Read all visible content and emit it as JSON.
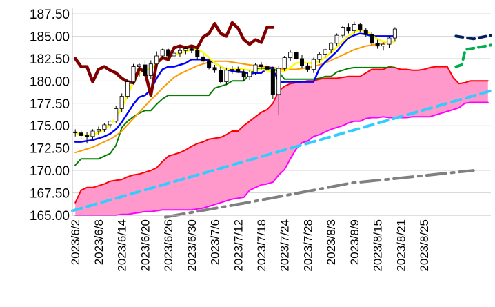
{
  "chart_data": {
    "type": "line",
    "title": "",
    "xlabel": "",
    "ylabel": "",
    "ylim": [
      165.0,
      187.5
    ],
    "y_ticks": [
      "187.50",
      "185.00",
      "182.50",
      "180.00",
      "177.50",
      "175.00",
      "172.50",
      "170.00",
      "167.50",
      "165.00"
    ],
    "x_tick_labels": [
      "2023/6/2",
      "2023/6/8",
      "2023/6/14",
      "2023/6/20",
      "2023/6/26",
      "2023/6/30",
      "2023/7/6",
      "2023/7/12",
      "2023/7/18",
      "2023/7/24",
      "2023/7/28",
      "2023/8/3",
      "2023/8/9",
      "2023/8/15",
      "2023/8/21",
      "2023/8/25"
    ],
    "x_tick_index": [
      0,
      4,
      8,
      12,
      16,
      20,
      24,
      28,
      32,
      36,
      40,
      44,
      48,
      52,
      56,
      60
    ],
    "n_periods": 72,
    "candles": [
      [
        174.3,
        174.6,
        173.8,
        174.2
      ],
      [
        174.2,
        174.5,
        173.5,
        173.9
      ],
      [
        173.9,
        174.3,
        173.0,
        173.8
      ],
      [
        173.8,
        174.6,
        173.5,
        174.4
      ],
      [
        174.4,
        174.9,
        174.0,
        174.6
      ],
      [
        174.6,
        175.3,
        174.3,
        175.1
      ],
      [
        175.1,
        175.6,
        174.7,
        175.5
      ],
      [
        175.5,
        177.2,
        175.3,
        176.9
      ],
      [
        176.9,
        178.6,
        176.5,
        178.3
      ],
      [
        178.3,
        180.2,
        178.0,
        179.9
      ],
      [
        179.9,
        181.9,
        179.6,
        181.6
      ],
      [
        181.6,
        182.0,
        180.5,
        181.8
      ],
      [
        181.8,
        182.3,
        180.4,
        180.6
      ],
      [
        180.6,
        182.3,
        180.2,
        181.9
      ],
      [
        181.9,
        183.3,
        181.4,
        182.8
      ],
      [
        182.8,
        183.6,
        182.4,
        183.5
      ],
      [
        183.5,
        183.6,
        182.5,
        182.8
      ],
      [
        182.8,
        183.5,
        182.3,
        183.1
      ],
      [
        183.1,
        183.7,
        182.7,
        183.4
      ],
      [
        183.4,
        183.8,
        183.0,
        183.6
      ],
      [
        183.6,
        183.8,
        183.1,
        183.4
      ],
      [
        183.4,
        183.7,
        182.4,
        182.7
      ],
      [
        182.7,
        183.0,
        181.9,
        182.2
      ],
      [
        182.2,
        182.5,
        181.3,
        181.5
      ],
      [
        181.5,
        181.8,
        180.9,
        181.2
      ],
      [
        181.2,
        181.6,
        179.7,
        179.9
      ],
      [
        179.9,
        181.5,
        179.6,
        181.2
      ],
      [
        181.2,
        181.7,
        180.8,
        181.3
      ],
      [
        181.3,
        181.6,
        180.9,
        181.0
      ],
      [
        181.0,
        181.3,
        180.0,
        180.5
      ],
      [
        180.5,
        181.2,
        180.1,
        181.0
      ],
      [
        181.0,
        182.0,
        180.7,
        181.8
      ],
      [
        181.8,
        182.1,
        181.3,
        181.6
      ],
      [
        181.6,
        182.0,
        181.0,
        181.3
      ],
      [
        181.3,
        181.6,
        178.0,
        178.5
      ],
      [
        178.5,
        181.7,
        176.2,
        181.4
      ],
      [
        181.4,
        182.8,
        181.1,
        182.6
      ],
      [
        182.6,
        183.4,
        182.2,
        183.2
      ],
      [
        183.2,
        183.4,
        182.3,
        182.5
      ],
      [
        182.5,
        182.9,
        181.4,
        181.7
      ],
      [
        181.7,
        182.0,
        181.0,
        181.3
      ],
      [
        181.3,
        182.6,
        180.9,
        182.4
      ],
      [
        182.4,
        183.2,
        182.0,
        183.0
      ],
      [
        183.0,
        183.6,
        182.6,
        183.5
      ],
      [
        183.5,
        184.3,
        183.1,
        184.2
      ],
      [
        184.2,
        185.3,
        183.9,
        185.1
      ],
      [
        185.1,
        186.2,
        184.8,
        186.0
      ],
      [
        186.0,
        186.4,
        185.3,
        185.6
      ],
      [
        185.6,
        186.6,
        185.3,
        186.3
      ],
      [
        186.3,
        186.5,
        185.5,
        185.7
      ],
      [
        185.7,
        185.9,
        184.9,
        185.2
      ],
      [
        185.2,
        185.5,
        184.0,
        184.2
      ],
      [
        184.2,
        184.6,
        183.6,
        183.9
      ],
      [
        183.9,
        184.3,
        183.4,
        184.1
      ],
      [
        184.1,
        185.0,
        183.7,
        184.8
      ],
      [
        184.8,
        186.0,
        184.4,
        185.8
      ]
    ],
    "series": [
      {
        "color": "#ffff00",
        "values": [
          174.2,
          174.0,
          173.9,
          174.0,
          174.2,
          174.6,
          175.1,
          175.9,
          177.0,
          178.4,
          179.9,
          180.9,
          181.2,
          181.4,
          181.9,
          182.5,
          182.7,
          182.9,
          183.1,
          183.3,
          183.5,
          183.5,
          183.2,
          182.6,
          182.0,
          181.6,
          181.3,
          181.3,
          181.4,
          181.3,
          181.2,
          181.2,
          181.3,
          181.2,
          181.0,
          181.0,
          181.1,
          181.5,
          182.0,
          182.1,
          182.0,
          182.0,
          182.2,
          182.6,
          183.2,
          183.8,
          184.4,
          185.0,
          185.4,
          185.7,
          185.6,
          185.1,
          184.7,
          184.4,
          184.3,
          184.4
        ]
      },
      {
        "color": "#0000ff",
        "values": [
          173.2,
          173.2,
          173.3,
          173.4,
          173.6,
          173.8,
          174.1,
          174.6,
          175.4,
          176.4,
          177.4,
          178.2,
          178.4,
          179.0,
          180.3,
          181.3,
          181.6,
          181.6,
          181.8,
          182.0,
          182.4,
          182.4,
          182.4,
          182.3,
          182.0,
          181.6,
          181.3,
          181.1,
          181.0,
          181.0,
          180.8,
          180.9,
          180.9,
          181.4,
          181.5,
          179.8,
          179.9,
          179.9,
          179.9,
          179.9,
          179.9,
          179.9,
          181.4,
          182.1,
          182.7,
          183.3,
          184.1,
          184.8,
          185.1,
          185.3,
          185.2,
          185.0,
          185.0,
          185.0,
          185.0,
          185.0
        ]
      },
      {
        "color": "#ff9900",
        "values": [
          172.0,
          172.2,
          172.4,
          172.6,
          172.9,
          173.2,
          173.5,
          173.9,
          174.4,
          175.1,
          175.8,
          176.5,
          177.2,
          177.9,
          178.5,
          179.2,
          179.8,
          180.4,
          180.8,
          181.1,
          181.4,
          181.7,
          181.9,
          182.1,
          182.2,
          182.2,
          182.2,
          182.1,
          182.0,
          181.9,
          181.8,
          181.7,
          181.6,
          181.6,
          181.5,
          181.4,
          181.3,
          181.3,
          181.3,
          181.4,
          181.5,
          181.6,
          181.8,
          182.0,
          182.3,
          182.6,
          182.9,
          183.2,
          183.5,
          183.7,
          183.9,
          184.0,
          184.1,
          184.2,
          184.3,
          184.4
        ]
      },
      {
        "color": "#008000",
        "values": [
          170.6,
          171.3,
          171.3,
          171.3,
          171.3,
          171.6,
          171.9,
          172.8,
          174.8,
          175.5,
          176.0,
          176.4,
          176.7,
          176.7,
          177.4,
          178.0,
          178.4,
          178.4,
          178.4,
          178.4,
          178.4,
          178.4,
          178.4,
          178.4,
          179.2,
          179.4,
          179.6,
          180.0,
          180.0,
          180.0,
          180.8,
          181.4,
          181.4,
          181.4,
          181.4,
          181.0,
          180.2,
          180.2,
          180.2,
          180.2,
          180.2,
          180.2,
          180.3,
          180.5,
          180.5,
          181.0,
          181.2,
          181.4,
          181.5,
          181.5,
          181.5,
          181.5,
          181.5,
          181.5,
          181.5,
          181.5
        ]
      },
      {
        "color": "#800000",
        "values": [
          182.5,
          181.6,
          181.6,
          179.9,
          181.3,
          181.6,
          181.2,
          180.9,
          180.3,
          179.9,
          179.8,
          181.4,
          181.0,
          178.4,
          182.0,
          182.6,
          182.4,
          183.7,
          183.9,
          183.7,
          183.9,
          183.7,
          184.9,
          185.3,
          186.4,
          185.3,
          185.0,
          186.5,
          185.9,
          184.6,
          184.1,
          184.6,
          184.3,
          186.0,
          186.0
        ]
      },
      {
        "color": "#ff0000",
        "values": [
          166.4,
          167.8,
          168.1,
          168.1,
          168.3,
          168.5,
          168.8,
          168.9,
          169.0,
          169.3,
          169.5,
          169.6,
          169.8,
          170.0,
          170.3,
          171.0,
          171.6,
          171.8,
          172.0,
          172.3,
          172.7,
          173.0,
          173.2,
          173.5,
          173.6,
          173.7,
          174.0,
          174.4,
          174.4,
          175.0,
          175.5,
          176.0,
          176.5,
          176.8,
          177.5,
          178.9,
          179.4,
          179.7,
          179.8,
          179.9,
          180.0,
          180.0,
          180.2,
          180.3,
          180.3,
          180.3,
          180.4,
          180.5,
          180.5,
          180.5,
          180.9,
          181.3,
          181.3,
          181.3,
          181.6,
          181.5,
          181.3,
          181.3,
          181.2,
          181.2,
          181.3,
          181.5,
          181.6,
          181.6,
          181.6,
          180.4,
          179.7,
          179.8,
          180.0,
          180.0,
          180.0,
          180.0
        ]
      },
      {
        "color": "#ff00ff",
        "values": [
          165.0,
          165.0,
          165.0,
          165.0,
          165.0,
          165.0,
          165.0,
          165.0,
          165.1,
          165.1,
          165.2,
          165.3,
          165.4,
          165.4,
          165.5,
          165.6,
          165.6,
          165.6,
          165.6,
          165.6,
          165.6,
          165.7,
          165.8,
          166.0,
          166.2,
          166.4,
          166.6,
          166.8,
          166.9,
          167.0,
          167.8,
          168.1,
          168.4,
          168.5,
          168.7,
          169.5,
          170.1,
          171.3,
          172.4,
          173.1,
          173.3,
          173.8,
          174.0,
          174.3,
          174.6,
          174.8,
          175.0,
          175.3,
          175.5,
          175.5,
          175.8,
          175.9,
          175.9,
          176.0,
          175.9,
          175.9,
          175.9,
          175.9,
          176.0,
          176.0,
          176.0,
          176.0,
          176.2,
          176.4,
          176.6,
          176.8,
          177.0,
          177.5,
          177.6,
          177.6,
          177.6,
          177.6
        ]
      },
      {
        "color": "#33ccff",
        "values": [
          165.5,
          171.4,
          175.6,
          178.8
        ]
      },
      {
        "color": "#808080",
        "values": [
          164.8,
          166.2,
          167.6,
          169.6
        ]
      },
      {
        "color": "#002060",
        "values": [
          185.0,
          184.7,
          185.1
        ]
      },
      {
        "color": "#00b050",
        "values": [
          181.6,
          181.8,
          183.5,
          184.0
        ]
      }
    ]
  }
}
